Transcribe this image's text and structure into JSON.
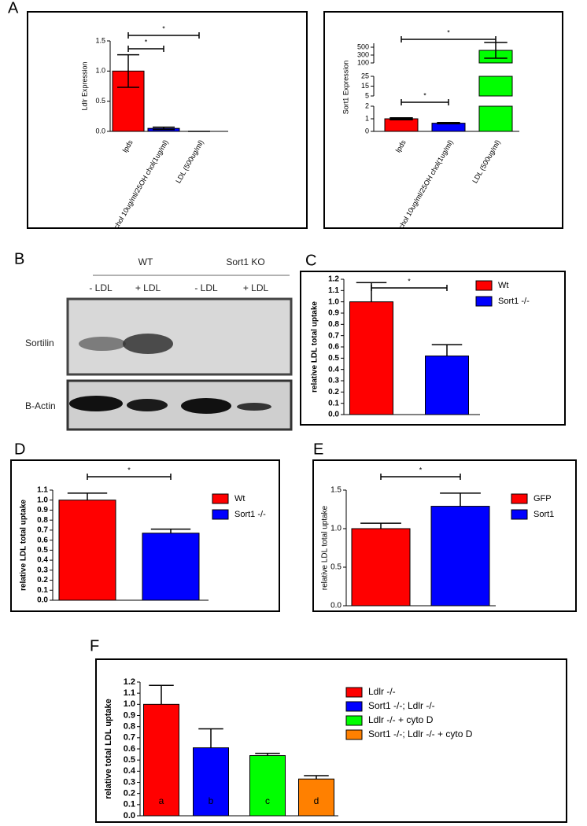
{
  "panel_labels": [
    "A",
    "B",
    "C",
    "D",
    "E",
    "F"
  ],
  "blot": {
    "groups": [
      "WT",
      "Sort1 KO"
    ],
    "lanes": [
      "- LDL",
      "+ LDL",
      "- LDL",
      "+ LDL"
    ],
    "rows": [
      "Sortilin",
      "B-Actin"
    ]
  },
  "chart_data": [
    {
      "type": "bar",
      "ylabel": "Ldlr Expression",
      "categories": [
        "lpds",
        "chol 10ug/ml/25OH chol(1ug/ml)",
        "LDL (500ug/ml)"
      ],
      "values": [
        1.0,
        0.05,
        0
      ],
      "errors": [
        0.27,
        0.02,
        0
      ],
      "colors": [
        "#ff0000",
        "#0000ff",
        "#00ff00"
      ],
      "ylim": [
        0,
        1.5
      ],
      "yticks": [
        {
          "value": 0,
          "label": "0.0"
        },
        0.5,
        {
          "value": 1,
          "label": "1.0"
        },
        1.5
      ],
      "annotations": [
        "*",
        "*"
      ]
    },
    {
      "type": "bar",
      "ylabel": "Sort1 Expression",
      "categories": [
        "lpds",
        "chol 10ug/ml/25OH chol(1ug/ml)",
        "LDL (500ug/ml)"
      ],
      "values": [
        1.0,
        0.65,
        420
      ],
      "errors": [
        0.08,
        0.05,
        200
      ],
      "colors": [
        "#ff0000",
        "#0000ff",
        "#00ff00"
      ],
      "ylim_segments": [
        [
          0,
          2
        ],
        [
          5,
          25
        ],
        [
          100,
          600
        ]
      ],
      "yticks": [
        0,
        1,
        2,
        5,
        15,
        25,
        100,
        300,
        500
      ],
      "annotations": [
        "*",
        "*"
      ]
    },
    {
      "type": "bar",
      "ylabel": "relative LDL total uptake",
      "series": [
        {
          "name": "Wt",
          "color": "#ff0000",
          "values": [
            1.0
          ],
          "errors": [
            0.17
          ]
        },
        {
          "name": "Sort1 -/-",
          "color": "#0000ff",
          "values": [
            0.52
          ],
          "errors": [
            0.1
          ]
        }
      ],
      "ylim": [
        0,
        1.2
      ],
      "yticks": [
        {
          "value": 0,
          "label": "0.0"
        },
        0.1,
        0.2,
        0.3,
        0.4,
        0.5,
        0.6,
        0.7,
        0.8,
        0.9,
        {
          "value": 1,
          "label": "1.0"
        },
        1.1,
        1.2
      ],
      "annotations": [
        "*"
      ]
    },
    {
      "type": "bar",
      "ylabel": "relative LDL total uptake",
      "series": [
        {
          "name": "Wt",
          "color": "#ff0000",
          "values": [
            1.0
          ],
          "errors": [
            0.07
          ]
        },
        {
          "name": "Sort1 -/-",
          "color": "#0000ff",
          "values": [
            0.67
          ],
          "errors": [
            0.04
          ]
        }
      ],
      "ylim": [
        0,
        1.1
      ],
      "yticks": [
        {
          "value": 0,
          "label": "0.0"
        },
        0.1,
        0.2,
        0.3,
        0.4,
        0.5,
        0.6,
        0.7,
        0.8,
        0.9,
        {
          "value": 1,
          "label": "1.0"
        },
        1.1
      ],
      "annotations": [
        "*"
      ]
    },
    {
      "type": "bar",
      "ylabel": "relative LDL total uptake",
      "series": [
        {
          "name": "GFP",
          "color": "#ff0000",
          "values": [
            1.0
          ],
          "errors": [
            0.07
          ]
        },
        {
          "name": "Sort1",
          "color": "#0000ff",
          "values": [
            1.29
          ],
          "errors": [
            0.17
          ]
        }
      ],
      "ylim": [
        0,
        1.5
      ],
      "yticks": [
        {
          "value": 0,
          "label": "0.0"
        },
        0.5,
        {
          "value": 1,
          "label": "1.0"
        },
        1.5
      ],
      "annotations": [
        "*"
      ]
    },
    {
      "type": "bar",
      "ylabel": "relative total LDL uptake",
      "series": [
        {
          "name": "Ldlr -/-",
          "color": "#ff0000",
          "values": [
            1.0
          ],
          "errors": [
            0.17
          ]
        },
        {
          "name": "Sort1 -/-; Ldlr -/-",
          "color": "#0000ff",
          "values": [
            0.61
          ],
          "errors": [
            0.17
          ]
        },
        {
          "name": "Ldlr -/- + cyto D",
          "color": "#00ff00",
          "values": [
            0.54
          ],
          "errors": [
            0.02
          ]
        },
        {
          "name": "Sort1 -/-; Ldlr -/- + cyto D",
          "color": "#ff8000",
          "values": [
            0.33
          ],
          "errors": [
            0.03
          ]
        }
      ],
      "bar_letters": [
        "a",
        "b",
        "c",
        "d"
      ],
      "ylim": [
        0,
        1.2
      ],
      "yticks": [
        {
          "value": 0,
          "label": "0.0"
        },
        0.1,
        0.2,
        0.3,
        0.4,
        0.5,
        0.6,
        0.7,
        0.8,
        0.9,
        {
          "value": 1,
          "label": "1.0"
        },
        1.1,
        1.2
      ]
    }
  ]
}
